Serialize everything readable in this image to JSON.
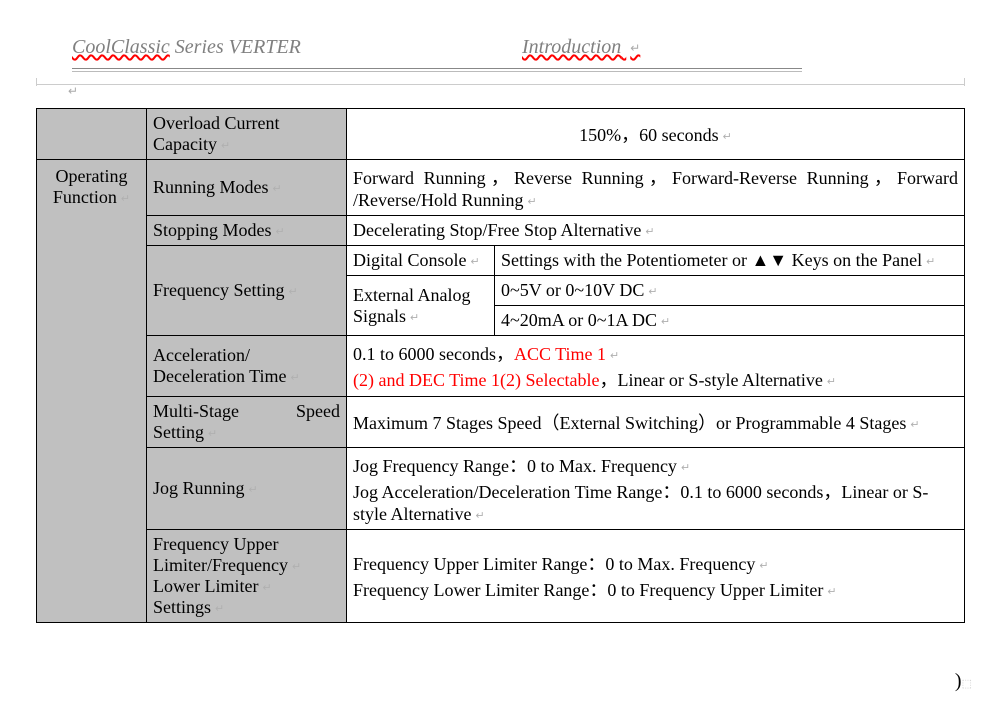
{
  "header": {
    "brand": "CoolClassic",
    "series": " Series VERTER",
    "intro": "Introduction"
  },
  "paragraph_mark": "↵",
  "close_paren": ")",
  "colors": {
    "header_gray": "#808080",
    "shade": "#c0c0c0",
    "red": "#ff0000",
    "border": "#000000",
    "pmark": "#b0b0b0"
  },
  "table": {
    "section_label": "Operating Function",
    "rows": [
      {
        "label": "Overload Current Capacity",
        "value": "150%，60 seconds"
      },
      {
        "label": "Running Modes",
        "value": "Forward Running，Reverse Running，Forward-Reverse Running，Forward /Reverse/Hold Running"
      },
      {
        "label": "Stopping Modes",
        "value": "Decelerating Stop/Free Stop Alternative"
      },
      {
        "label": "Frequency Setting",
        "sub": [
          {
            "k": "Digital Console",
            "v": "Settings with the Potentiometer or ▲▼ Keys on the Panel"
          },
          {
            "k": "External Analog Signals",
            "v_lines": [
              "0~5V or 0~10V DC",
              "4~20mA or 0~1A DC"
            ]
          }
        ]
      },
      {
        "label": "Acceleration/ Deceleration Time",
        "value_pre": "0.1 to 6000 seconds，",
        "value_red1": "ACC Time 1",
        "value_red2": "(2) and DEC Time 1(2) Selectable",
        "value_post": "，Linear or S-style Alternative"
      },
      {
        "label": "Multi-Stage Speed Setting",
        "value": "Maximum 7 Stages Speed（External Switching）or Programmable 4 Stages"
      },
      {
        "label": "Jog Running",
        "value": "Jog Frequency Range：0 to Max. Frequency\nJog Acceleration/Deceleration Time Range：0.1 to 6000 seconds，Linear or S-style Alternative"
      },
      {
        "label": "Frequency Upper Limiter/Frequency Lower Limiter Settings",
        "value": "Frequency Upper Limiter Range：0 to Max. Frequency\nFrequency Lower Limiter Range：0 to Frequency Upper Limiter"
      }
    ]
  }
}
